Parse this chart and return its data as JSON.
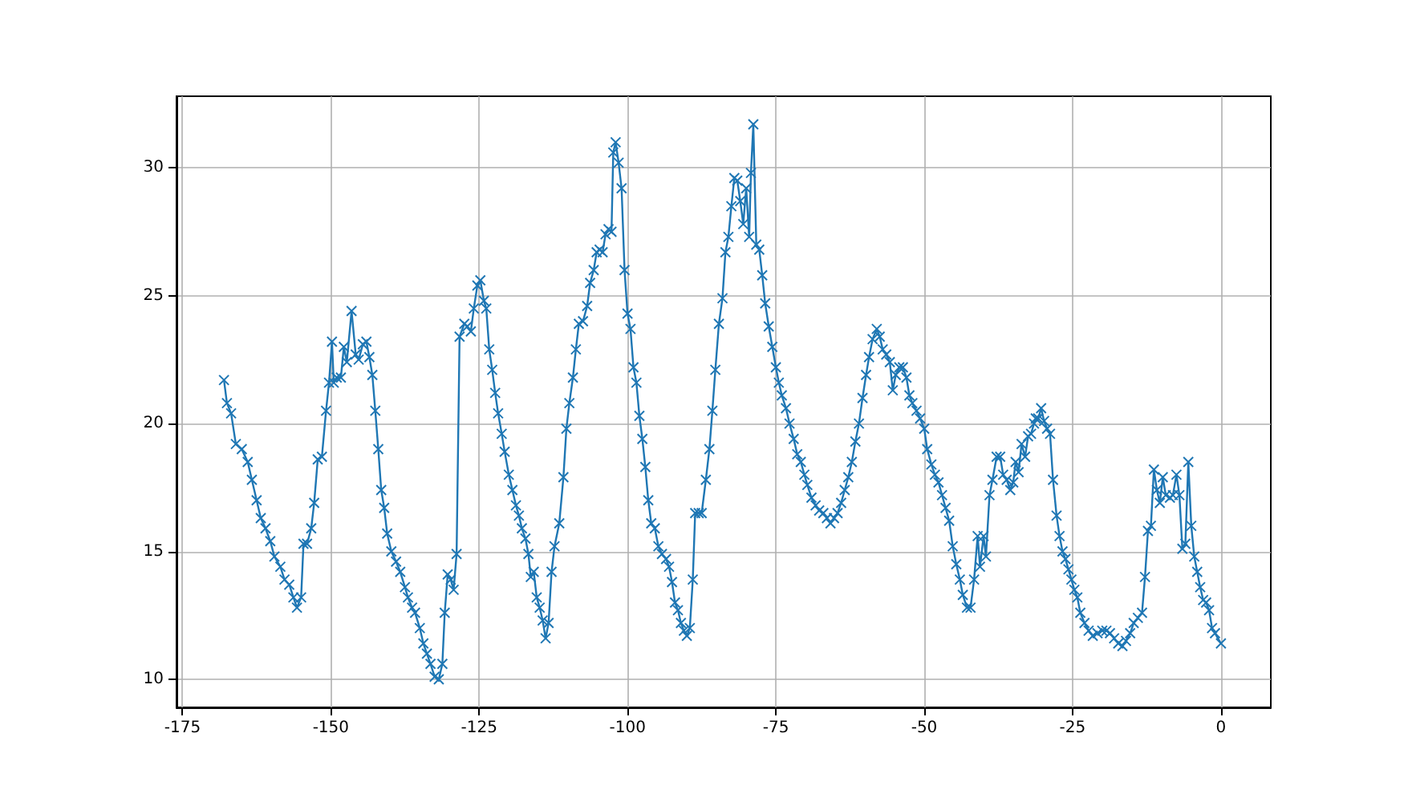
{
  "chart_data": {
    "type": "line",
    "marker": "cross",
    "grid": true,
    "xlim": [
      -176,
      8.4
    ],
    "xticks": [
      -175,
      -150,
      -125,
      -100,
      -75,
      -50,
      -25,
      0
    ],
    "ylim": [
      8.9,
      32.8
    ],
    "yticks": [
      10,
      15,
      20,
      25,
      30
    ],
    "series": [
      {
        "color": "#1f77b4",
        "x": [
          -168,
          -167.5,
          -166.8,
          -166,
          -165,
          -164,
          -163.3,
          -162.5,
          -161.8,
          -161,
          -160.2,
          -159.5,
          -158.5,
          -157.8,
          -157,
          -156.3,
          -155.7,
          -155,
          -154.6,
          -154,
          -153.3,
          -152.8,
          -152.2,
          -151.5,
          -150.8,
          -150.3,
          -149.8,
          -149.5,
          -149,
          -148.3,
          -147.8,
          -147.3,
          -146.5,
          -145.8,
          -145.3,
          -144.6,
          -144,
          -143.5,
          -143,
          -142.5,
          -142,
          -141.5,
          -141,
          -140.5,
          -139.8,
          -139,
          -138.3,
          -137.5,
          -137,
          -136.3,
          -135.8,
          -135,
          -134.4,
          -133.8,
          -133.2,
          -132.5,
          -131.8,
          -131.2,
          -130.8,
          -130.3,
          -129.8,
          -129.3,
          -128.8,
          -128.3,
          -127.5,
          -127,
          -126.4,
          -125.9,
          -125.3,
          -124.8,
          -124.2,
          -123.8,
          -123.3,
          -122.8,
          -122.3,
          -121.8,
          -121.2,
          -120.7,
          -120,
          -119.4,
          -118.8,
          -118.3,
          -117.8,
          -117.2,
          -116.7,
          -116.3,
          -115.8,
          -115.3,
          -114.8,
          -114.3,
          -113.8,
          -113.3,
          -112.8,
          -112.3,
          -111.5,
          -110.8,
          -110.3,
          -109.8,
          -109.2,
          -108.7,
          -108.2,
          -107.5,
          -106.8,
          -106.3,
          -105.7,
          -105.2,
          -104.7,
          -104.2,
          -103.7,
          -103.2,
          -102.7,
          -102.4,
          -102,
          -101.5,
          -101,
          -100.5,
          -100,
          -99.5,
          -99,
          -98.5,
          -98,
          -97.5,
          -97,
          -96.5,
          -96,
          -95.4,
          -94.8,
          -94.2,
          -93.5,
          -93,
          -92.5,
          -92,
          -91.5,
          -91,
          -90.5,
          -90,
          -89.5,
          -89,
          -88.6,
          -88,
          -87.5,
          -86.8,
          -86.2,
          -85.7,
          -85.2,
          -84.6,
          -84,
          -83.5,
          -83,
          -82.5,
          -82,
          -81.5,
          -81,
          -80.5,
          -80,
          -79.5,
          -79.2,
          -78.8,
          -78.3,
          -77.8,
          -77.3,
          -76.8,
          -76.2,
          -75.6,
          -75,
          -74.5,
          -74,
          -73.3,
          -72.7,
          -72,
          -71.4,
          -70.8,
          -70.2,
          -69.7,
          -69,
          -68.3,
          -67.7,
          -67,
          -66.4,
          -65.8,
          -65.2,
          -64.6,
          -64,
          -63.4,
          -62.8,
          -62.2,
          -61.6,
          -61,
          -60.4,
          -59.8,
          -59.3,
          -58.7,
          -58,
          -57.5,
          -57,
          -56.4,
          -55.8,
          -55.3,
          -54.8,
          -54.2,
          -53.6,
          -53,
          -52.5,
          -52,
          -51.3,
          -50.7,
          -50,
          -49.5,
          -48.8,
          -48.2,
          -47.6,
          -47,
          -46.4,
          -45.8,
          -45.2,
          -44.6,
          -44,
          -43.5,
          -42.8,
          -42.2,
          -41.6,
          -41,
          -40.6,
          -40,
          -39.6,
          -39,
          -38.5,
          -37.8,
          -37.2,
          -36.7,
          -36.1,
          -35.5,
          -35,
          -34.6,
          -34.1,
          -33.6,
          -33,
          -32.5,
          -32,
          -31.5,
          -31.2,
          -30.8,
          -30.3,
          -29.8,
          -29.3,
          -28.8,
          -28.3,
          -27.7,
          -27.2,
          -26.7,
          -26.2,
          -25.7,
          -25.2,
          -24.7,
          -24.2,
          -23.7,
          -23,
          -22.3,
          -21.6,
          -20.8,
          -20,
          -19.3,
          -18.7,
          -18,
          -17.3,
          -16.6,
          -16,
          -15.3,
          -14.7,
          -14,
          -13.3,
          -12.8,
          -12.3,
          -11.8,
          -11.3,
          -10.8,
          -10.3,
          -9.8,
          -9.3,
          -8.6,
          -8.1,
          -7.5,
          -7,
          -6.5,
          -6,
          -5.5,
          -5,
          -4.5,
          -4,
          -3.5,
          -3,
          -2.5,
          -2,
          -1.5,
          -1,
          0
        ],
        "values": [
          21.7,
          20.8,
          20.4,
          19.2,
          19.0,
          18.5,
          17.8,
          17.0,
          16.3,
          15.9,
          15.4,
          14.8,
          14.4,
          13.9,
          13.7,
          13.2,
          12.8,
          13.2,
          15.3,
          15.3,
          15.9,
          16.9,
          18.6,
          18.7,
          20.5,
          21.6,
          23.2,
          21.6,
          21.8,
          21.8,
          23.0,
          22.4,
          24.4,
          22.7,
          22.5,
          23.1,
          23.2,
          22.6,
          21.9,
          20.5,
          19.0,
          17.4,
          16.7,
          15.7,
          15.0,
          14.6,
          14.2,
          13.6,
          13.2,
          12.8,
          12.6,
          12.0,
          11.4,
          11.0,
          10.6,
          10.1,
          10.0,
          10.6,
          12.6,
          14.1,
          13.9,
          13.5,
          14.9,
          23.4,
          23.9,
          23.8,
          23.6,
          24.5,
          25.4,
          25.6,
          24.8,
          24.5,
          22.9,
          22.1,
          21.2,
          20.4,
          19.6,
          18.9,
          18.0,
          17.4,
          16.8,
          16.4,
          15.9,
          15.5,
          14.9,
          14.0,
          14.2,
          13.2,
          12.8,
          12.3,
          11.6,
          12.2,
          14.2,
          15.2,
          16.1,
          17.9,
          19.8,
          20.8,
          21.8,
          22.9,
          23.9,
          24.0,
          24.6,
          25.5,
          26.0,
          26.7,
          26.8,
          26.7,
          27.4,
          27.6,
          27.5,
          30.6,
          31.0,
          30.2,
          29.2,
          26.0,
          24.3,
          23.7,
          22.2,
          21.6,
          20.3,
          19.4,
          18.3,
          17.0,
          16.1,
          15.9,
          15.2,
          14.9,
          14.7,
          14.4,
          13.8,
          13.0,
          12.7,
          12.2,
          11.9,
          11.7,
          12.0,
          13.9,
          16.5,
          16.5,
          16.5,
          17.8,
          19.0,
          20.5,
          22.1,
          23.9,
          24.9,
          26.7,
          27.3,
          28.5,
          29.6,
          29.5,
          28.7,
          27.8,
          29.2,
          27.3,
          29.8,
          31.7,
          27.0,
          26.8,
          25.8,
          24.7,
          23.8,
          23.0,
          22.2,
          21.6,
          21.1,
          20.6,
          20.0,
          19.4,
          18.8,
          18.5,
          18.0,
          17.6,
          17.1,
          16.8,
          16.6,
          16.5,
          16.3,
          16.1,
          16.3,
          16.5,
          16.9,
          17.4,
          17.9,
          18.5,
          19.3,
          20.0,
          21.0,
          21.9,
          22.6,
          23.3,
          23.7,
          23.4,
          22.9,
          22.7,
          22.4,
          21.3,
          21.9,
          22.2,
          22.2,
          21.8,
          21.1,
          20.8,
          20.5,
          20.2,
          19.8,
          19.0,
          18.4,
          18.0,
          17.7,
          17.2,
          16.7,
          16.2,
          15.2,
          14.5,
          13.9,
          13.3,
          12.8,
          12.8,
          13.9,
          15.6,
          14.4,
          15.6,
          14.8,
          17.2,
          17.8,
          18.7,
          18.7,
          18.0,
          17.8,
          17.4,
          17.7,
          18.5,
          18.1,
          19.2,
          18.7,
          19.5,
          19.6,
          20.0,
          20.2,
          20.2,
          20.6,
          20.1,
          19.8,
          19.6,
          17.8,
          16.4,
          15.6,
          15.0,
          14.7,
          14.3,
          13.9,
          13.5,
          13.2,
          12.6,
          12.2,
          11.9,
          11.7,
          11.8,
          11.9,
          11.9,
          11.8,
          11.6,
          11.4,
          11.3,
          11.5,
          11.8,
          12.2,
          12.4,
          12.6,
          14.0,
          15.8,
          16.0,
          18.2,
          17.4,
          16.9,
          17.9,
          17.2,
          17.1,
          17.2,
          18.0,
          17.2,
          15.1,
          15.3,
          18.5,
          16.0,
          14.8,
          14.2,
          13.6,
          13.1,
          13.0,
          12.7,
          12.0,
          11.8,
          11.4
        ]
      }
    ]
  }
}
